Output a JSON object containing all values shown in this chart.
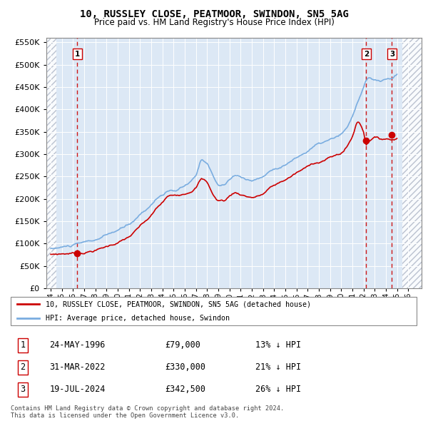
{
  "title": "10, RUSSLEY CLOSE, PEATMOOR, SWINDON, SN5 5AG",
  "subtitle": "Price paid vs. HM Land Registry's House Price Index (HPI)",
  "legend_label_red": "10, RUSSLEY CLOSE, PEATMOOR, SWINDON, SN5 5AG (detached house)",
  "legend_label_blue": "HPI: Average price, detached house, Swindon",
  "footnote": "Contains HM Land Registry data © Crown copyright and database right 2024.\nThis data is licensed under the Open Government Licence v3.0.",
  "transactions": [
    {
      "num": 1,
      "date": "24-MAY-1996",
      "price": 79000,
      "year": 1996.38
    },
    {
      "num": 2,
      "date": "31-MAR-2022",
      "price": 330000,
      "year": 2022.25
    },
    {
      "num": 3,
      "date": "19-JUL-2024",
      "price": 342500,
      "year": 2024.55
    }
  ],
  "table_rows": [
    {
      "num": 1,
      "date": "24-MAY-1996",
      "price": "£79,000",
      "pct": "13% ↓ HPI"
    },
    {
      "num": 2,
      "date": "31-MAR-2022",
      "price": "£330,000",
      "pct": "21% ↓ HPI"
    },
    {
      "num": 3,
      "date": "19-JUL-2024",
      "price": "£342,500",
      "pct": "26% ↓ HPI"
    }
  ],
  "ylim": [
    0,
    560000
  ],
  "yticks": [
    0,
    50000,
    100000,
    150000,
    200000,
    250000,
    300000,
    350000,
    400000,
    450000,
    500000,
    550000
  ],
  "xlim_left": 1993.6,
  "xlim_right": 2027.2,
  "hatch_left_end": 1994.5,
  "hatch_right_start": 2025.5,
  "red_color": "#cc0000",
  "blue_color": "#7aade0",
  "bg_plot": "#dce8f5",
  "vline_color": "#cc0000"
}
